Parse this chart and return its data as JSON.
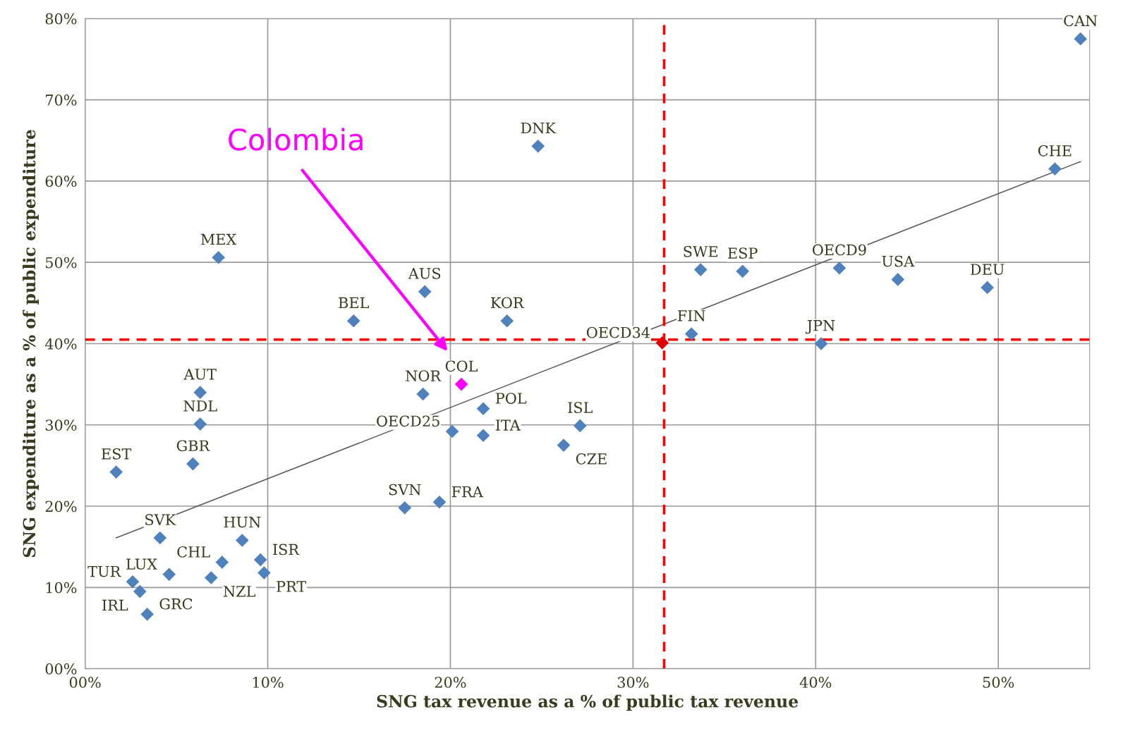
{
  "chart_data": {
    "type": "scatter",
    "xlabel": "SNG tax revenue as a % of public tax revenue",
    "ylabel": "SNG expenditure as a % of public expenditure",
    "xlim": [
      0,
      55
    ],
    "ylim": [
      0,
      80
    ],
    "xticks": [
      {
        "value": 0,
        "label": "00%"
      },
      {
        "value": 10,
        "label": "10%"
      },
      {
        "value": 20,
        "label": "20%"
      },
      {
        "value": 30,
        "label": "30%"
      },
      {
        "value": 40,
        "label": "40%"
      },
      {
        "value": 50,
        "label": "50%"
      }
    ],
    "yticks": [
      {
        "value": 0,
        "label": "00%"
      },
      {
        "value": 10,
        "label": "10%"
      },
      {
        "value": 20,
        "label": "20%"
      },
      {
        "value": 30,
        "label": "30%"
      },
      {
        "value": 40,
        "label": "40%"
      },
      {
        "value": 50,
        "label": "50%"
      },
      {
        "value": 60,
        "label": "60%"
      },
      {
        "value": 70,
        "label": "70%"
      },
      {
        "value": 80,
        "label": "80%"
      }
    ],
    "grid": true,
    "legend": false,
    "series": [
      {
        "marker": "diamond",
        "x": [
          54.5,
          53.1,
          24.8,
          7.3,
          18.6,
          14.7,
          23.1,
          33.7,
          36.0,
          41.3,
          44.5,
          49.4,
          40.3,
          31.6,
          33.2,
          6.3,
          6.3,
          18.5,
          20.6,
          21.8,
          20.1,
          21.8,
          26.2,
          27.1,
          1.7,
          5.9,
          17.5,
          19.4,
          4.1,
          8.6,
          7.5,
          9.6,
          9.8,
          4.6,
          6.9,
          2.6,
          3.0,
          3.4
        ],
        "values": [
          77.5,
          61.5,
          64.3,
          50.6,
          46.4,
          42.8,
          42.8,
          49.1,
          48.9,
          49.3,
          47.9,
          46.9,
          40.0,
          40.1,
          41.2,
          34.0,
          30.1,
          33.8,
          35.0,
          32.0,
          29.2,
          28.7,
          27.5,
          29.9,
          24.2,
          25.2,
          19.8,
          20.5,
          16.1,
          15.8,
          13.1,
          13.4,
          11.8,
          11.6,
          11.2,
          10.7,
          9.5,
          6.7
        ],
        "colors": [
          "#4f81bd",
          "#4f81bd",
          "#4f81bd",
          "#4f81bd",
          "#4f81bd",
          "#4f81bd",
          "#4f81bd",
          "#4f81bd",
          "#4f81bd",
          "#4f81bd",
          "#4f81bd",
          "#4f81bd",
          "#4f81bd",
          "#e00000",
          "#4f81bd",
          "#4f81bd",
          "#4f81bd",
          "#4f81bd",
          "#ff00ff",
          "#4f81bd",
          "#4f81bd",
          "#4f81bd",
          "#4f81bd",
          "#4f81bd",
          "#4f81bd",
          "#4f81bd",
          "#4f81bd",
          "#4f81bd",
          "#4f81bd",
          "#4f81bd",
          "#4f81bd",
          "#4f81bd",
          "#4f81bd",
          "#4f81bd",
          "#4f81bd",
          "#4f81bd",
          "#4f81bd",
          "#4f81bd"
        ]
      },
      {
        "type": "line",
        "color": "#595959",
        "x": [
          1.7,
          54.5
        ],
        "values": [
          16.1,
          62.4
        ]
      }
    ],
    "ref_lines": [
      {
        "axis": "x",
        "value": 31.7,
        "color": "#ff0000",
        "line_style": "dashed"
      },
      {
        "axis": "y",
        "value": 40.5,
        "color": "#ff0000",
        "line_style": "dashed"
      }
    ],
    "annotations": [
      "Colombia",
      {
        "text": "CAN",
        "x": 54.5,
        "y": 77.5
      },
      {
        "text": "CHE",
        "x": 53.1,
        "y": 61.5
      },
      {
        "text": "DNK",
        "x": 24.8,
        "y": 64.3
      },
      {
        "text": "MEX",
        "x": 7.3,
        "y": 50.6
      },
      {
        "text": "AUS",
        "x": 18.6,
        "y": 46.4
      },
      {
        "text": "BEL",
        "x": 14.7,
        "y": 42.8
      },
      {
        "text": "KOR",
        "x": 23.1,
        "y": 42.8
      },
      {
        "text": "SWE",
        "x": 33.7,
        "y": 49.1
      },
      {
        "text": "ESP",
        "x": 36.0,
        "y": 48.9
      },
      {
        "text": "OECD9",
        "x": 41.3,
        "y": 49.3
      },
      {
        "text": "USA",
        "x": 44.5,
        "y": 47.9
      },
      {
        "text": "DEU",
        "x": 49.4,
        "y": 46.9
      },
      {
        "text": "JPN",
        "x": 40.3,
        "y": 40.0
      },
      {
        "text": "OECD34",
        "x": 31.6,
        "y": 40.1
      },
      {
        "text": "FIN",
        "x": 33.2,
        "y": 41.2
      },
      {
        "text": "AUT",
        "x": 6.3,
        "y": 34.0
      },
      {
        "text": "NDL",
        "x": 6.3,
        "y": 30.1
      },
      {
        "text": "NOR",
        "x": 18.5,
        "y": 33.8
      },
      {
        "text": "COL",
        "x": 20.6,
        "y": 35.0
      },
      {
        "text": "POL",
        "x": 21.8,
        "y": 32.0
      },
      {
        "text": "OECD25",
        "x": 20.1,
        "y": 29.2
      },
      {
        "text": "ITA",
        "x": 21.8,
        "y": 28.7
      },
      {
        "text": "CZE",
        "x": 26.2,
        "y": 27.5
      },
      {
        "text": "ISL",
        "x": 27.1,
        "y": 29.9
      },
      {
        "text": "EST",
        "x": 1.7,
        "y": 24.2
      },
      {
        "text": "GBR",
        "x": 5.9,
        "y": 25.2
      },
      {
        "text": "SVN",
        "x": 17.5,
        "y": 19.8
      },
      {
        "text": "FRA",
        "x": 19.4,
        "y": 20.5
      },
      {
        "text": "SVK",
        "x": 4.1,
        "y": 16.1
      },
      {
        "text": "HUN",
        "x": 8.6,
        "y": 15.8
      },
      {
        "text": "CHL",
        "x": 7.5,
        "y": 13.1
      },
      {
        "text": "ISR",
        "x": 9.6,
        "y": 13.4
      },
      {
        "text": "PRT",
        "x": 9.8,
        "y": 11.8
      },
      {
        "text": "LUX",
        "x": 4.6,
        "y": 11.6
      },
      {
        "text": "NZL",
        "x": 6.9,
        "y": 11.2
      },
      {
        "text": "TUR",
        "x": 2.6,
        "y": 10.7
      },
      {
        "text": "IRL",
        "x": 3.0,
        "y": 9.5
      },
      {
        "text": "GRC",
        "x": 3.4,
        "y": 6.7
      }
    ]
  }
}
